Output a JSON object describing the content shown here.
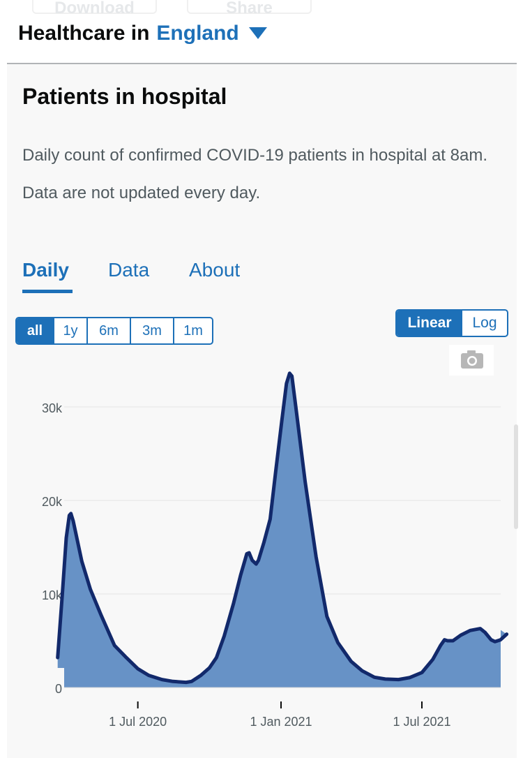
{
  "top_actions": {
    "download_label": "Download",
    "share_label": "Share"
  },
  "header": {
    "prefix": "Healthcare in",
    "area": "England"
  },
  "card": {
    "title": "Patients in hospital",
    "description": "Daily count of confirmed COVID-19 patients in hospital at 8am. Data are not updated every day."
  },
  "tabs": [
    {
      "label": "Daily",
      "active": true
    },
    {
      "label": "Data",
      "active": false
    },
    {
      "label": "About",
      "active": false
    }
  ],
  "time_ranges": [
    {
      "label": "all",
      "active": true
    },
    {
      "label": "1y",
      "active": false
    },
    {
      "label": "6m",
      "active": false
    },
    {
      "label": "3m",
      "active": false
    },
    {
      "label": "1m",
      "active": false
    }
  ],
  "scale": {
    "options": [
      "Linear",
      "Log"
    ],
    "selected": "Linear"
  },
  "icons": {
    "area_dropdown": "caret-down-icon",
    "screenshot": "camera-icon"
  },
  "colors": {
    "accent": "#1d70b8",
    "line": "#12296b",
    "fill": "#6792c6"
  },
  "chart_data": {
    "type": "area",
    "title": "",
    "xlabel": "",
    "ylabel": "",
    "ylim": [
      0,
      36000
    ],
    "yticks": [
      {
        "value": 0,
        "label": "0"
      },
      {
        "value": 10000,
        "label": "10k"
      },
      {
        "value": 20000,
        "label": "20k"
      },
      {
        "value": 30000,
        "label": "30k"
      }
    ],
    "xticks": [
      {
        "date": "2020-07-01",
        "label": "1 Jul 2020"
      },
      {
        "date": "2021-01-01",
        "label": "1 Jan 2021"
      },
      {
        "date": "2021-07-01",
        "label": "1 Jul 2021"
      }
    ],
    "grid": true,
    "series": [
      {
        "points": [
          [
            "2020-03-20",
            3200
          ],
          [
            "2020-03-26",
            10000
          ],
          [
            "2020-03-31",
            16000
          ],
          [
            "2020-04-04",
            18400
          ],
          [
            "2020-04-06",
            18600
          ],
          [
            "2020-04-09",
            17800
          ],
          [
            "2020-04-20",
            13500
          ],
          [
            "2020-05-01",
            10500
          ],
          [
            "2020-05-15",
            7700
          ],
          [
            "2020-06-01",
            4500
          ],
          [
            "2020-06-15",
            3300
          ],
          [
            "2020-07-01",
            2000
          ],
          [
            "2020-07-15",
            1300
          ],
          [
            "2020-08-01",
            850
          ],
          [
            "2020-08-15",
            650
          ],
          [
            "2020-09-01",
            550
          ],
          [
            "2020-09-08",
            650
          ],
          [
            "2020-09-20",
            1300
          ],
          [
            "2020-10-01",
            2100
          ],
          [
            "2020-10-10",
            3200
          ],
          [
            "2020-10-20",
            5500
          ],
          [
            "2020-11-01",
            9000
          ],
          [
            "2020-11-10",
            12000
          ],
          [
            "2020-11-18",
            14300
          ],
          [
            "2020-11-21",
            14400
          ],
          [
            "2020-11-25",
            13600
          ],
          [
            "2020-11-30",
            13200
          ],
          [
            "2020-12-03",
            13600
          ],
          [
            "2020-12-10",
            15500
          ],
          [
            "2020-12-18",
            18000
          ],
          [
            "2020-12-25",
            23000
          ],
          [
            "2021-01-02",
            28500
          ],
          [
            "2021-01-08",
            32500
          ],
          [
            "2021-01-12",
            33600
          ],
          [
            "2021-01-15",
            33300
          ],
          [
            "2021-01-20",
            30000
          ],
          [
            "2021-02-01",
            22000
          ],
          [
            "2021-02-15",
            14000
          ],
          [
            "2021-03-01",
            7600
          ],
          [
            "2021-03-15",
            4800
          ],
          [
            "2021-04-01",
            2800
          ],
          [
            "2021-04-15",
            1800
          ],
          [
            "2021-05-01",
            1100
          ],
          [
            "2021-05-15",
            900
          ],
          [
            "2021-06-01",
            850
          ],
          [
            "2021-06-15",
            1050
          ],
          [
            "2021-07-01",
            1600
          ],
          [
            "2021-07-15",
            3000
          ],
          [
            "2021-07-25",
            4500
          ],
          [
            "2021-07-30",
            5100
          ],
          [
            "2021-08-03",
            5000
          ],
          [
            "2021-08-10",
            5000
          ],
          [
            "2021-08-20",
            5600
          ],
          [
            "2021-09-01",
            6100
          ],
          [
            "2021-09-14",
            6300
          ],
          [
            "2021-09-20",
            5900
          ],
          [
            "2021-09-28",
            5100
          ],
          [
            "2021-10-03",
            4900
          ],
          [
            "2021-10-10",
            5100
          ],
          [
            "2021-10-18",
            5700
          ]
        ]
      }
    ]
  }
}
